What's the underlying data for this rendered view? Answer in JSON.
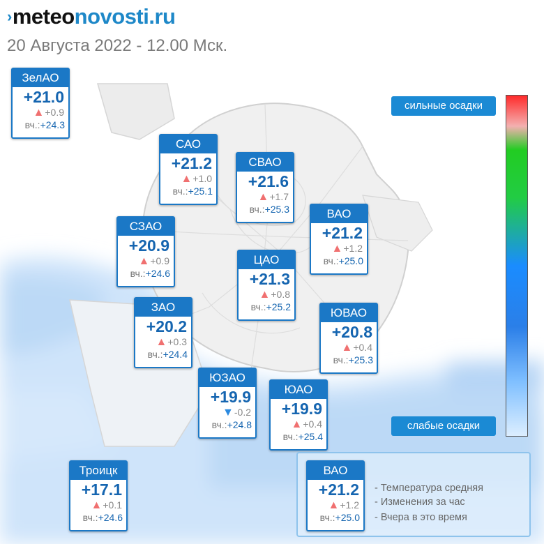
{
  "site": {
    "brand_part1": "meteo",
    "brand_part2": "novosti.ru",
    "logo_icon": "chevron-double-icon"
  },
  "subtitle": "20 Августа 2022 - 12.00 Мск.",
  "yesterday_label": "вч.:",
  "districts": {
    "zelao": {
      "name": "ЗелАО",
      "temp": "+21.0",
      "change": "+0.9",
      "trend": "up",
      "yesterday": "+24.3"
    },
    "sao": {
      "name": "САО",
      "temp": "+21.2",
      "change": "+1.0",
      "trend": "up",
      "yesterday": "+25.1"
    },
    "svao": {
      "name": "СВАО",
      "temp": "+21.6",
      "change": "+1.7",
      "trend": "up",
      "yesterday": "+25.3"
    },
    "vao": {
      "name": "ВАО",
      "temp": "+21.2",
      "change": "+1.2",
      "trend": "up",
      "yesterday": "+25.0"
    },
    "szao": {
      "name": "СЗАО",
      "temp": "+20.9",
      "change": "+0.9",
      "trend": "up",
      "yesterday": "+24.6"
    },
    "cao": {
      "name": "ЦАО",
      "temp": "+21.3",
      "change": "+0.8",
      "trend": "up",
      "yesterday": "+25.2"
    },
    "zao": {
      "name": "ЗАО",
      "temp": "+20.2",
      "change": "+0.3",
      "trend": "up",
      "yesterday": "+24.4"
    },
    "yuvao": {
      "name": "ЮВАО",
      "temp": "+20.8",
      "change": "+0.4",
      "trend": "up",
      "yesterday": "+25.3"
    },
    "yuzao": {
      "name": "ЮЗАО",
      "temp": "+19.9",
      "change": "-0.2",
      "trend": "down",
      "yesterday": "+24.8"
    },
    "yuao": {
      "name": "ЮАО",
      "temp": "+19.9",
      "change": "+0.4",
      "trend": "up",
      "yesterday": "+25.4"
    },
    "troitsk": {
      "name": "Троицк",
      "temp": "+17.1",
      "change": "+0.1",
      "trend": "up",
      "yesterday": "+24.6"
    }
  },
  "precip_scale": {
    "high_label": "сильные осадки",
    "low_label": "слабые осадки"
  },
  "legend": {
    "sample": {
      "name": "ВАО",
      "temp": "+21.2",
      "change": "+1.2",
      "trend": "up",
      "yesterday": "+25.0"
    },
    "avg_temp_label": "- Температура средняя",
    "hourly_change_label": "- Изменения за час",
    "yesterday_label": "- Вчера в это время"
  },
  "colors": {
    "accent": "#1b78c6",
    "temp": "#1565b0",
    "trend_up": "#f07070",
    "trend_down": "#2b8ae0"
  }
}
